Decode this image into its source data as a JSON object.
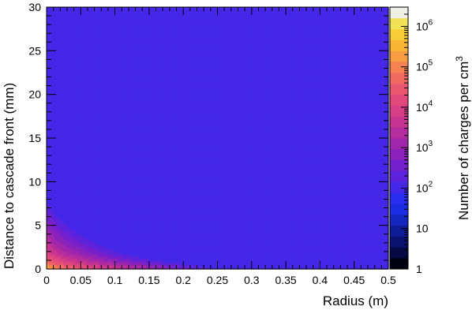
{
  "chart_data": {
    "type": "heatmap",
    "xlabel": "Radius (m)",
    "ylabel": "Distance to cascade front (mm)",
    "zlabel_main": "Number of charges per cm",
    "zlabel_exp": "3",
    "xlim": [
      0,
      0.5
    ],
    "ylim": [
      0,
      30
    ],
    "zscale": "log",
    "zlim": [
      1,
      3000000
    ],
    "x_ticks": [
      "0",
      "0.05",
      "0.1",
      "0.15",
      "0.2",
      "0.25",
      "0.3",
      "0.35",
      "0.4",
      "0.45",
      "0.5"
    ],
    "y_ticks": [
      "0",
      "5",
      "10",
      "15",
      "20",
      "25",
      "30"
    ],
    "z_ticks": [
      {
        "base": "1",
        "exp": "",
        "value": 1
      },
      {
        "base": "10",
        "exp": "",
        "value": 10
      },
      {
        "base": "10",
        "exp": "2",
        "value": 100
      },
      {
        "base": "10",
        "exp": "3",
        "value": 1000
      },
      {
        "base": "10",
        "exp": "4",
        "value": 10000
      },
      {
        "base": "10",
        "exp": "5",
        "value": 100000
      },
      {
        "base": "10",
        "exp": "6",
        "value": 1000000
      }
    ],
    "palette": [
      "#000010",
      "#050a45",
      "#0a1270",
      "#0f1c98",
      "#1426c0",
      "#1a2de0",
      "#2a2cf0",
      "#4527e8",
      "#5d22dc",
      "#7420cc",
      "#8b22bc",
      "#a026ac",
      "#b42c9e",
      "#c63490",
      "#d63e86",
      "#e2487c",
      "#ea5870",
      "#f06a62",
      "#f48252",
      "#f79c42",
      "#f9b635",
      "#f8ce38",
      "#f2e258",
      "#efefe6"
    ],
    "density_model": {
      "peak_log10": 5.3,
      "peak_x": 0.004,
      "peak_y": 0.3,
      "r_scale": 0.045,
      "r_exponent": 0.7,
      "front_thickness_mm": 1.0,
      "front_drop": 0.9,
      "tail_scale_mm": 7,
      "tail_exponent": 0.85,
      "tail_depth": 2.2
    }
  }
}
